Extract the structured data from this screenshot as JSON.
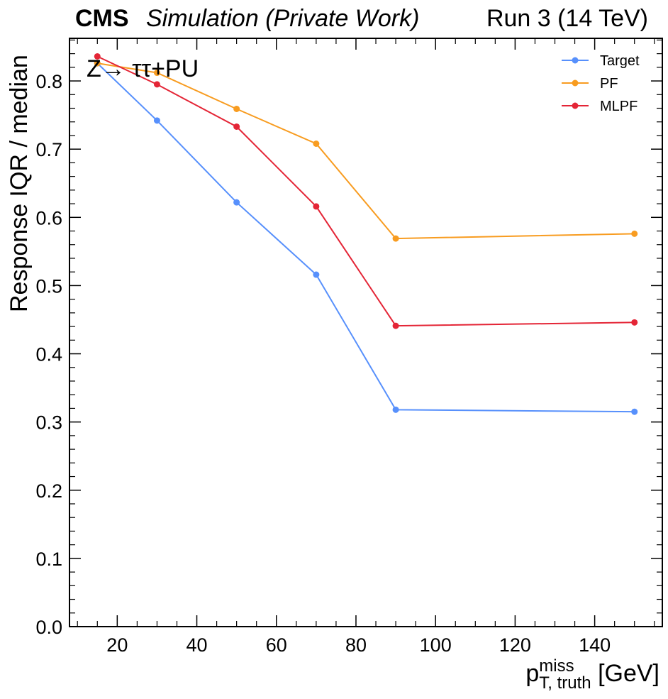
{
  "header": {
    "experiment": "CMS",
    "status": "Simulation (Private Work)",
    "run": "Run 3 (14 TeV)"
  },
  "process_label": "Z→ ττ+PU",
  "chart_data": {
    "type": "line",
    "ylabel": "Response IQR / median",
    "xlabel": {
      "base": "p",
      "sub": "T, truth",
      "sup": "miss",
      "unit": " [GeV]"
    },
    "xlim": [
      8,
      157
    ],
    "ylim": [
      0.0,
      0.8625
    ],
    "xticks": [
      20,
      40,
      60,
      80,
      100,
      120,
      140
    ],
    "yticks": [
      0.0,
      0.1,
      0.2,
      0.3,
      0.4,
      0.5,
      0.6,
      0.7,
      0.8
    ],
    "grid": false,
    "legend_position": "top-right",
    "series": [
      {
        "name": "Target",
        "color": "#5790fc",
        "x": [
          15,
          30,
          50,
          70,
          90,
          150
        ],
        "y": [
          0.826,
          0.742,
          0.622,
          0.516,
          0.318,
          0.315
        ]
      },
      {
        "name": "PF",
        "color": "#f89c20",
        "x": [
          15,
          30,
          50,
          70,
          90,
          150
        ],
        "y": [
          0.826,
          0.812,
          0.759,
          0.708,
          0.569,
          0.576
        ]
      },
      {
        "name": "MLPF",
        "color": "#e42536",
        "x": [
          15,
          30,
          50,
          70,
          90,
          150
        ],
        "y": [
          0.836,
          0.795,
          0.733,
          0.616,
          0.441,
          0.446
        ]
      }
    ]
  }
}
